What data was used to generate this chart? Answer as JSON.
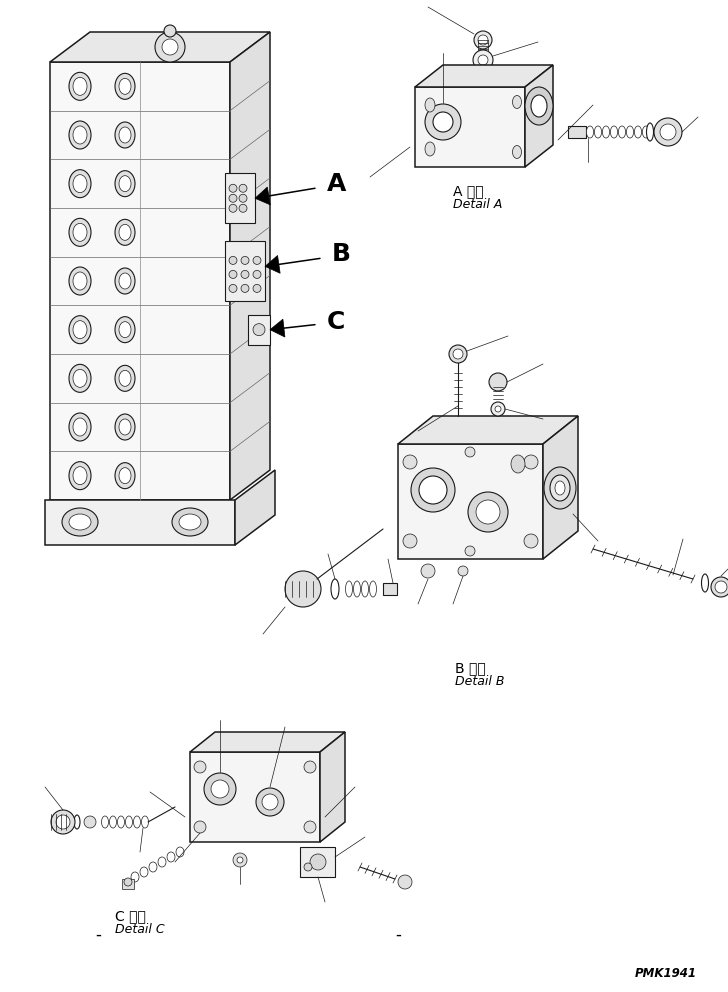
{
  "background_color": "#ffffff",
  "line_color": "#1a1a1a",
  "text_color": "#000000",
  "watermark": "PMK1941",
  "label_A_jp": "A 詳細",
  "label_A_en": "Detail A",
  "label_B_jp": "B 詳細",
  "label_B_en": "Detail B",
  "label_C_jp": "C 詳細",
  "label_C_en": "Detail C"
}
